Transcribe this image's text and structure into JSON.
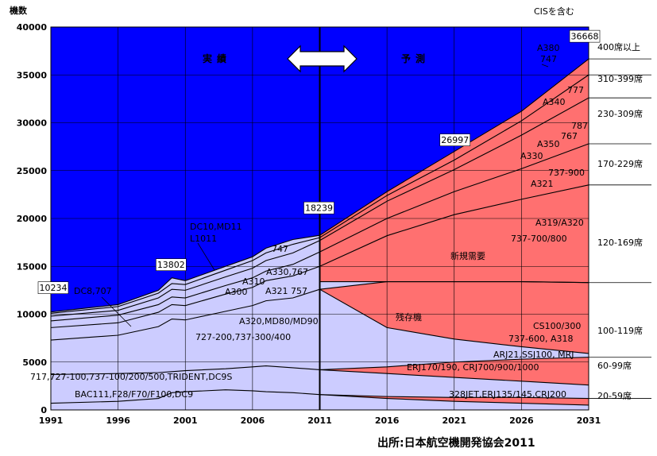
{
  "chart_data": {
    "type": "area",
    "ylabel": "機数",
    "top_note": "CISを含む",
    "source": "出所:日本航空機開発協会2011",
    "ylim": [
      0,
      40000
    ],
    "xlim": [
      1991,
      2031
    ],
    "yticks": [
      0,
      5000,
      10000,
      15000,
      20000,
      25000,
      30000,
      35000,
      40000
    ],
    "xticks": [
      1991,
      1996,
      2001,
      2006,
      2011,
      2016,
      2021,
      2026,
      2031
    ],
    "grid": true,
    "period_labels": {
      "actual": "実績",
      "forecast": "予測",
      "divider_year": 2011
    },
    "x": [
      1991,
      1996,
      1999,
      2000,
      2001,
      2004,
      2006,
      2007,
      2009,
      2011,
      2016,
      2021,
      2026,
      2031
    ],
    "boundaries": [
      {
        "name": "20-59",
        "values": [
          700,
          900,
          1200,
          1800,
          1900,
          2100,
          2000,
          1900,
          1800,
          1600,
          1400,
          1300,
          1300,
          1200
        ]
      },
      {
        "name": "60-99",
        "values": [
          3700,
          3800,
          3900,
          4000,
          4100,
          4300,
          4500,
          4600,
          4400,
          4200,
          4500,
          5000,
          5300,
          5500
        ]
      },
      {
        "name": "100-119",
        "values": [
          7300,
          7800,
          8700,
          9500,
          9400,
          10300,
          10900,
          11400,
          11700,
          12600,
          13400,
          13400,
          13400,
          13300
        ]
      },
      {
        "name": "120-169",
        "values": [
          8600,
          9100,
          10200,
          11000,
          10900,
          12100,
          12800,
          13500,
          14000,
          15000,
          18200,
          20400,
          22000,
          23500
        ]
      },
      {
        "name": "170-229",
        "values": [
          9300,
          9900,
          11000,
          11800,
          11700,
          13000,
          13800,
          14500,
          15200,
          16500,
          20000,
          22800,
          25200,
          27800
        ]
      },
      {
        "name": "230-309",
        "values": [
          9800,
          10400,
          11700,
          12600,
          12500,
          13900,
          14800,
          15600,
          16400,
          17700,
          21800,
          25100,
          28700,
          32600
        ]
      },
      {
        "name": "310-399",
        "values": [
          10100,
          10800,
          12200,
          13200,
          13100,
          14600,
          15600,
          16400,
          17300,
          18000,
          22400,
          26100,
          30200,
          35000
        ]
      },
      {
        "name": "400以上",
        "values": [
          10234,
          11000,
          12500,
          13802,
          13500,
          15000,
          16000,
          16900,
          17800,
          18239,
          22800,
          26997,
          31200,
          36668
        ]
      }
    ],
    "forecast_new_demand_bottom": {
      "x": [
        2011,
        2016,
        2021,
        2026,
        2031
      ],
      "values": [
        13400,
        13400,
        13400,
        13400,
        13300
      ]
    },
    "retired_boundaries_forecast": [
      {
        "name": "100-119",
        "values": [
          12600,
          8600,
          7400,
          6600,
          5900
        ]
      },
      {
        "name": "60-99",
        "values": [
          4200,
          3800,
          3400,
          3000,
          2600
        ]
      },
      {
        "name": "20-59",
        "values": [
          1600,
          1200,
          900,
          700,
          500
        ]
      }
    ],
    "value_labels": [
      {
        "year": 1991,
        "value": 10234,
        "text": "10234"
      },
      {
        "year": 2000,
        "value": 13802,
        "text": "13802"
      },
      {
        "year": 2011,
        "value": 18239,
        "text": "18239"
      },
      {
        "year": 2021,
        "value": 26997,
        "text": "26997"
      },
      {
        "year": 2031,
        "value": 36668,
        "text": "36668"
      }
    ],
    "segment_labels": [
      "400席以上",
      "310-399席",
      "230-309席",
      "170-229席",
      "120-169席",
      "100-119席",
      "60-99席",
      "20-59席"
    ],
    "annotations": {
      "remaining": "残存機",
      "new_demand": "新規需要",
      "dc8": "DC8,707",
      "dc10": "DC10,MD11",
      "l1011": "L1011",
      "a300": "A300",
      "a310": "A310",
      "a330_767": "A330,767",
      "a321_757": "A321 757",
      "b747_hist": "747",
      "a320_md": "A320,MD80/MD90",
      "b727": "727-200,737-300/400",
      "old_717": "717,727-100,737-100/200/500,TRIDENT,DC9S",
      "bac": "BAC111,F28/F70/F100,DC9",
      "a380": "A380",
      "b747": "747",
      "b777": "777",
      "a340": "A340",
      "b787": "787",
      "a350": "A350",
      "b767": "767",
      "a330": "A330",
      "b737_900": "737-900",
      "a321": "A321",
      "a319": "A319/A320",
      "b737_700": "737-700/800",
      "cs": "CS100/300",
      "b737_600": "737-600, A318",
      "arj": "ARJ21,SSJ100, MRJ",
      "erj170": "ERJ170/190, CRJ700/900/1000",
      "erj135": "328JET,ERJ135/145,CRJ200"
    },
    "colors": {
      "plot_bg": "#0000ff",
      "historical_fill": "#ccccff",
      "forecast_new_fill": "#ff7070",
      "line": "#000000"
    }
  }
}
